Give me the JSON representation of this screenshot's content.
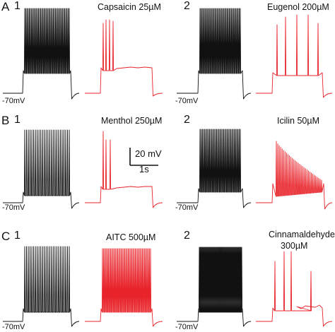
{
  "figure": {
    "rows": [
      {
        "letter": "A",
        "panels": [
          {
            "number": "1",
            "drug": "Capsaicin 25µM",
            "baseline": "-70mV"
          },
          {
            "number": "2",
            "drug": "Eugenol 200µM",
            "baseline": "-70mV"
          }
        ]
      },
      {
        "letter": "B",
        "panels": [
          {
            "number": "1",
            "drug": "Menthol 250µM",
            "baseline": "-70mV"
          },
          {
            "number": "2",
            "drug": "Icilin 50µM",
            "baseline": "-70mV"
          }
        ]
      },
      {
        "letter": "C",
        "panels": [
          {
            "number": "1",
            "drug": "AITC 500µM",
            "baseline": "-70mV"
          },
          {
            "number": "2",
            "drug_line1": "Cinnamaldehyde",
            "drug_line2": "300µM",
            "baseline": "-70mV"
          }
        ]
      }
    ],
    "scale_bar": {
      "voltage": "20 mV",
      "time": "1s"
    },
    "colors": {
      "control_trace": "#111111",
      "drug_trace": "#e8232a"
    }
  }
}
